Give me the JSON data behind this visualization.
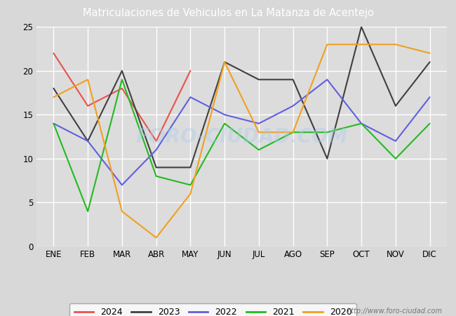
{
  "title": "Matriculaciones de Vehiculos en La Matanza de Acentejo",
  "header_bg": "#5b9bd5",
  "months": [
    "ENE",
    "FEB",
    "MAR",
    "ABR",
    "MAY",
    "JUN",
    "JUL",
    "AGO",
    "SEP",
    "OCT",
    "NOV",
    "DIC"
  ],
  "series": {
    "2024": {
      "color": "#e8534a",
      "data": [
        22,
        16,
        18,
        12,
        20,
        null,
        null,
        null,
        null,
        null,
        null,
        null
      ]
    },
    "2023": {
      "color": "#404040",
      "data": [
        18,
        12,
        20,
        9,
        9,
        21,
        19,
        19,
        10,
        25,
        16,
        21
      ]
    },
    "2022": {
      "color": "#6060e0",
      "data": [
        14,
        12,
        7,
        11,
        17,
        15,
        14,
        16,
        19,
        14,
        12,
        17
      ]
    },
    "2021": {
      "color": "#22bb22",
      "data": [
        14,
        4,
        19,
        8,
        7,
        14,
        11,
        13,
        13,
        14,
        10,
        14
      ]
    },
    "2020": {
      "color": "#f0a020",
      "data": [
        17,
        19,
        4,
        1,
        6,
        21,
        13,
        13,
        23,
        23,
        23,
        22
      ]
    }
  },
  "ylim": [
    0,
    25
  ],
  "yticks": [
    0,
    5,
    10,
    15,
    20,
    25
  ],
  "outer_bg": "#d8d8d8",
  "plot_bg": "#dcdcdc",
  "grid_color": "#ffffff",
  "url": "http://www.foro-ciudad.com",
  "legend_order": [
    "2024",
    "2023",
    "2022",
    "2021",
    "2020"
  ],
  "watermark_text": "FORO-CIUDAD.COM",
  "watermark_color": "#aaccee",
  "watermark_alpha": 0.4
}
